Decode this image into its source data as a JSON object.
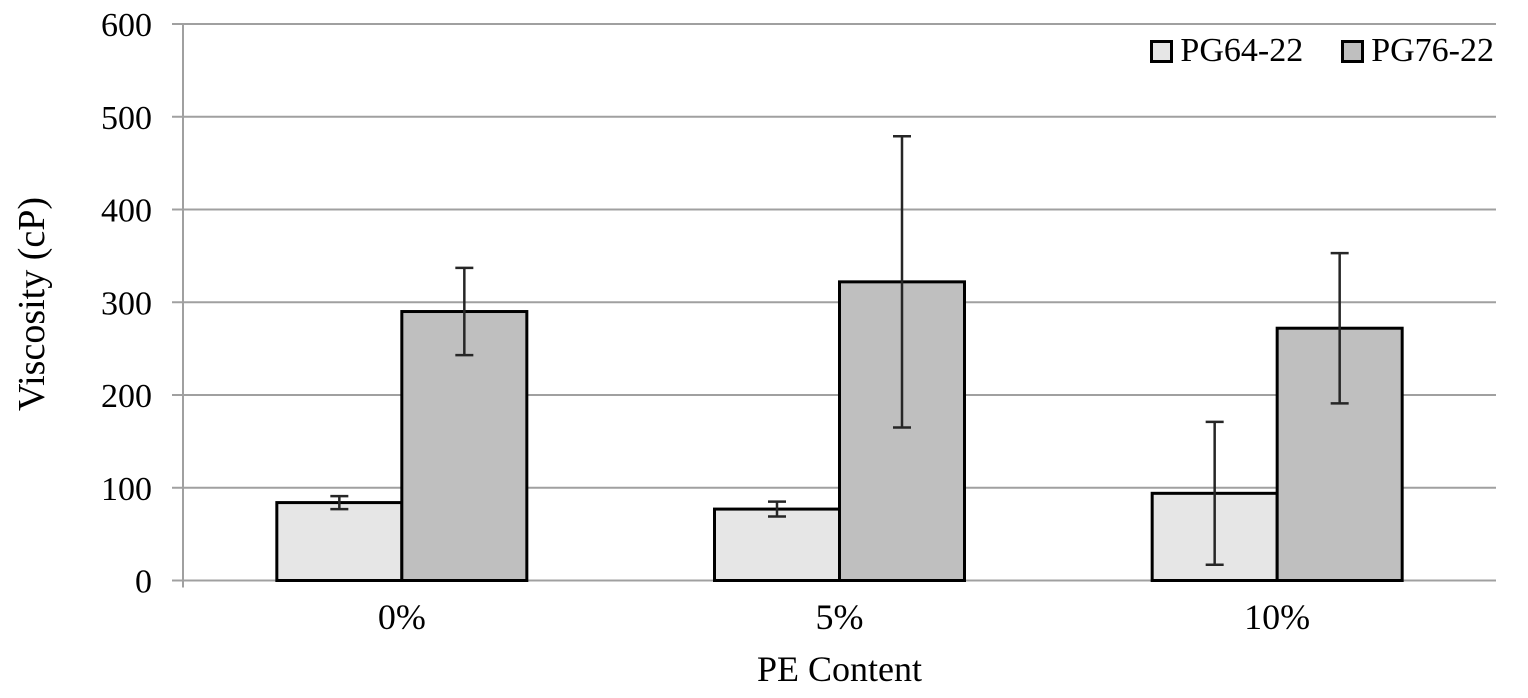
{
  "chart_data": {
    "type": "bar",
    "title": "",
    "xlabel": "PE Content",
    "ylabel": "Viscosity (cP)",
    "categories": [
      "0%",
      "5%",
      "10%"
    ],
    "series": [
      {
        "name": "PG64-22",
        "color": "#e6e6e6",
        "values": [
          84,
          77,
          94
        ],
        "errors": [
          7,
          8,
          77
        ]
      },
      {
        "name": "PG76-22",
        "color": "#bfbfbf",
        "values": [
          290,
          322,
          272
        ],
        "errors": [
          47,
          157,
          81
        ]
      }
    ],
    "ylim": [
      0,
      600
    ],
    "yticks": [
      0,
      100,
      200,
      300,
      400,
      500,
      600
    ],
    "grid": true,
    "legend_position": "top-right",
    "colors": {
      "grid": "#a0a0a0",
      "axis": "#a0a0a0",
      "bar_border": "#000000",
      "error_bar": "#262626"
    }
  }
}
